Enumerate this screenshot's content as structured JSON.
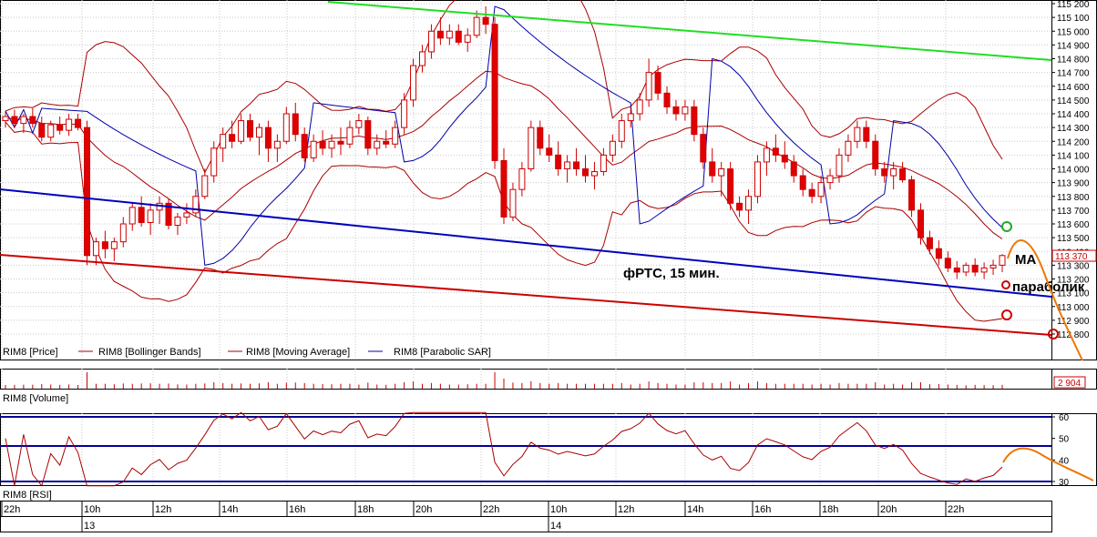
{
  "colors": {
    "background": "#ffffff",
    "grid": "#c9c9c9",
    "candle_bear": "#e00000",
    "candle_bull": "#ffffff",
    "candle_outline": "#cc0000",
    "bollinger": "#aa0000",
    "moving_average": "#aa0000",
    "parabolic_sar": "#0000aa",
    "trend_green": "#22dd22",
    "trend_blue": "#0000bb",
    "trend_red": "#cc0000",
    "rsi_line": "#aa0000",
    "rsi_levels": "#000099",
    "volume_bars": "#cc0000",
    "annotation_orange": "#ee7700",
    "circle_green": "#22aa22",
    "circle_red": "#cc0000"
  },
  "chart_data": [
    {
      "type": "candlestick",
      "panel": "price",
      "y_axis_labels": [
        "115 200",
        "115 100",
        "115 000",
        "114 900",
        "114 800",
        "114 700",
        "114 600",
        "114 500",
        "114 400",
        "114 300",
        "114 200",
        "114 100",
        "114 000",
        "113 900",
        "113 800",
        "113 700",
        "113 600",
        "113 500",
        "113 400",
        "113 300",
        "113 200",
        "113 100",
        "113 000",
        "112 900",
        "112 800"
      ],
      "ylim": [
        112800,
        115200
      ],
      "current_price_label": "113 370",
      "legend": [
        "RIM8 [Price]",
        "RIM8 [Bollinger Bands]",
        "RIM8 [Moving Average]",
        "RIM8 [Parabolic SAR]"
      ],
      "annotations": {
        "title": "фРТС, 15 мин.",
        "ma": "МА",
        "parabolic": "параболик"
      },
      "candles": [
        [
          114350,
          114420,
          114300,
          114380
        ],
        [
          114380,
          114430,
          114300,
          114330
        ],
        [
          114330,
          114400,
          114260,
          114380
        ],
        [
          114380,
          114440,
          114300,
          114330
        ],
        [
          114330,
          114380,
          114200,
          114230
        ],
        [
          114230,
          114350,
          114200,
          114320
        ],
        [
          114320,
          114380,
          114250,
          114280
        ],
        [
          114280,
          114400,
          114240,
          114360
        ],
        [
          114360,
          114400,
          114280,
          114300
        ],
        [
          114300,
          114350,
          113300,
          113370
        ],
        [
          113370,
          113500,
          113300,
          113470
        ],
        [
          113470,
          113550,
          113350,
          113420
        ],
        [
          113420,
          113500,
          113330,
          113470
        ],
        [
          113470,
          113650,
          113430,
          113600
        ],
        [
          113600,
          113750,
          113550,
          113720
        ],
        [
          113720,
          113800,
          113580,
          113610
        ],
        [
          113610,
          113750,
          113520,
          113700
        ],
        [
          113700,
          113800,
          113600,
          113750
        ],
        [
          113750,
          113780,
          113560,
          113590
        ],
        [
          113590,
          113680,
          113520,
          113650
        ],
        [
          113650,
          113750,
          113600,
          113680
        ],
        [
          113680,
          113850,
          113650,
          113800
        ],
        [
          113800,
          114000,
          113780,
          113950
        ],
        [
          113950,
          114200,
          113900,
          114150
        ],
        [
          114150,
          114300,
          114050,
          114250
        ],
        [
          114250,
          114350,
          114150,
          114200
        ],
        [
          114200,
          114400,
          114180,
          114350
        ],
        [
          114350,
          114400,
          114200,
          114230
        ],
        [
          114230,
          114330,
          114100,
          114300
        ],
        [
          114300,
          114350,
          114050,
          114150
        ],
        [
          114150,
          114250,
          114050,
          114200
        ],
        [
          114200,
          114450,
          114180,
          114400
        ],
        [
          114400,
          114480,
          114200,
          114250
        ],
        [
          114250,
          114300,
          114050,
          114080
        ],
        [
          114080,
          114250,
          114050,
          114200
        ],
        [
          114200,
          114280,
          114100,
          114150
        ],
        [
          114150,
          114250,
          114080,
          114200
        ],
        [
          114200,
          114300,
          114100,
          114180
        ],
        [
          114180,
          114350,
          114150,
          114300
        ],
        [
          114300,
          114400,
          114250,
          114350
        ],
        [
          114350,
          114380,
          114100,
          114150
        ],
        [
          114150,
          114250,
          114100,
          114200
        ],
        [
          114200,
          114280,
          114150,
          114180
        ],
        [
          114180,
          114350,
          114150,
          114300
        ],
        [
          114300,
          114550,
          114250,
          114500
        ],
        [
          114500,
          114800,
          114450,
          114750
        ],
        [
          114750,
          114900,
          114700,
          114850
        ],
        [
          114850,
          115050,
          114800,
          115000
        ],
        [
          115000,
          115100,
          114900,
          114950
        ],
        [
          114950,
          115050,
          114900,
          115000
        ],
        [
          115000,
          115050,
          114900,
          114920
        ],
        [
          114920,
          115020,
          114850,
          114970
        ],
        [
          114970,
          115150,
          114950,
          115100
        ],
        [
          115100,
          115180,
          114980,
          115050
        ],
        [
          115050,
          115100,
          114000,
          114060
        ],
        [
          114060,
          114150,
          113600,
          113650
        ],
        [
          113650,
          113900,
          113620,
          113850
        ],
        [
          113850,
          114050,
          113800,
          114000
        ],
        [
          114000,
          114350,
          113980,
          114300
        ],
        [
          114300,
          114350,
          114100,
          114150
        ],
        [
          114150,
          114250,
          114050,
          114100
        ],
        [
          114100,
          114200,
          113950,
          114000
        ],
        [
          114000,
          114100,
          113900,
          114050
        ],
        [
          114050,
          114150,
          113950,
          114000
        ],
        [
          114000,
          114100,
          113900,
          113950
        ],
        [
          113950,
          114050,
          113850,
          113980
        ],
        [
          113980,
          114150,
          113950,
          114100
        ],
        [
          114100,
          114250,
          114050,
          114200
        ],
        [
          114200,
          114400,
          114150,
          114350
        ],
        [
          114350,
          114450,
          114300,
          114400
        ],
        [
          114400,
          114550,
          114350,
          114500
        ],
        [
          114500,
          114800,
          114450,
          114700
        ],
        [
          114700,
          114750,
          114500,
          114550
        ],
        [
          114550,
          114600,
          114400,
          114450
        ],
        [
          114450,
          114500,
          114350,
          114400
        ],
        [
          114400,
          114500,
          114350,
          114450
        ],
        [
          114450,
          114500,
          114200,
          114250
        ],
        [
          114250,
          114300,
          114000,
          114050
        ],
        [
          114050,
          114150,
          113900,
          113950
        ],
        [
          113950,
          114050,
          113800,
          114000
        ],
        [
          114000,
          114050,
          113700,
          113750
        ],
        [
          113750,
          113800,
          113650,
          113700
        ],
        [
          113700,
          113850,
          113600,
          113800
        ],
        [
          113800,
          114100,
          113750,
          114050
        ],
        [
          114050,
          114200,
          113950,
          114150
        ],
        [
          114150,
          114250,
          114050,
          114100
        ],
        [
          114100,
          114200,
          114000,
          114050
        ],
        [
          114050,
          114100,
          113900,
          113950
        ],
        [
          113950,
          114000,
          113800,
          113850
        ],
        [
          113850,
          113900,
          113750,
          113800
        ],
        [
          113800,
          113950,
          113750,
          113900
        ],
        [
          113900,
          114000,
          113850,
          113950
        ],
        [
          113950,
          114150,
          113900,
          114100
        ],
        [
          114100,
          114250,
          114050,
          114200
        ],
        [
          114200,
          114350,
          114150,
          114300
        ],
        [
          114300,
          114350,
          114150,
          114200
        ],
        [
          114200,
          114250,
          113950,
          114000
        ],
        [
          114000,
          114050,
          113900,
          113950
        ],
        [
          113950,
          114050,
          113850,
          114000
        ],
        [
          114000,
          114050,
          113900,
          113920
        ],
        [
          113920,
          113950,
          113650,
          113700
        ],
        [
          113700,
          113750,
          113450,
          113500
        ],
        [
          113500,
          113550,
          113380,
          113420
        ],
        [
          113420,
          113480,
          113300,
          113350
        ],
        [
          113350,
          113400,
          113250,
          113280
        ],
        [
          113280,
          113330,
          113200,
          113250
        ],
        [
          113250,
          113320,
          113220,
          113300
        ],
        [
          113300,
          113350,
          113220,
          113250
        ],
        [
          113250,
          113320,
          113200,
          113280
        ],
        [
          113280,
          113340,
          113230,
          113300
        ],
        [
          113300,
          113380,
          113250,
          113370
        ]
      ]
    },
    {
      "type": "bar",
      "panel": "volume",
      "legend": "RIM8 [Volume]",
      "current_value_label": "2 904"
    },
    {
      "type": "line",
      "panel": "rsi",
      "legend": "RIM8 [RSI]",
      "y_axis_labels": [
        "60",
        "50",
        "40",
        "30"
      ],
      "ylim": [
        30,
        60
      ],
      "levels": [
        30,
        46.5,
        60
      ]
    }
  ],
  "time_axis": {
    "labels": [
      "22h",
      "10h",
      "12h",
      "14h",
      "16h",
      "18h",
      "20h",
      "22h",
      "10h",
      "12h",
      "14h",
      "16h",
      "18h",
      "20h",
      "22h"
    ],
    "dates": [
      "13",
      "14"
    ]
  }
}
